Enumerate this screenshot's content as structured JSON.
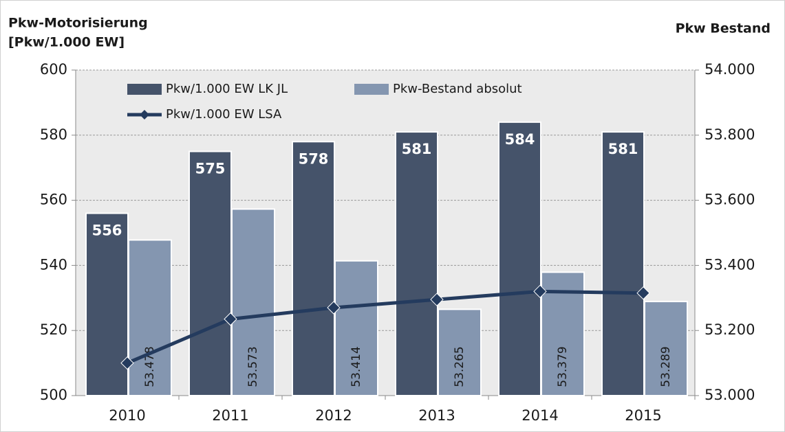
{
  "chart_data": {
    "type": "bar-line",
    "y_label": [
      "Pkw-Motorisierung",
      "[Pkw/1.000 EW]"
    ],
    "y2_label": "Pkw Bestand",
    "categories": [
      "2010",
      "2011",
      "2012",
      "2013",
      "2014",
      "2015"
    ],
    "series": [
      {
        "name": "Pkw/1.000 EW LK JL",
        "type": "bar",
        "color": "#45536a",
        "axis": "y",
        "values": [
          556,
          575,
          578,
          581,
          584,
          581
        ]
      },
      {
        "name": "Pkw-Bestand absolut",
        "type": "bar",
        "color": "#8496b0",
        "axis": "y2",
        "values": [
          53478,
          53573,
          53414,
          53265,
          53379,
          53289
        ],
        "value_labels": [
          "53.478",
          "53.573",
          "53.414",
          "53.265",
          "53.379",
          "53.289"
        ]
      },
      {
        "name": "Pkw/1.000 EW LSA",
        "type": "line",
        "color": "#243b5e",
        "axis": "y",
        "values": [
          510,
          523.5,
          527,
          529.5,
          532,
          531.5
        ]
      }
    ],
    "ylim": [
      500,
      600
    ],
    "yticks": [
      500,
      520,
      540,
      560,
      580,
      600
    ],
    "y2lim": [
      53000,
      54000
    ],
    "y2ticks": [
      {
        "value": 53000,
        "label": "53.000"
      },
      {
        "value": 53200,
        "label": "53.200"
      },
      {
        "value": 53400,
        "label": "53.400"
      },
      {
        "value": 53600,
        "label": "53.600"
      },
      {
        "value": 53800,
        "label": "53.800"
      },
      {
        "value": 54000,
        "label": "54.000"
      }
    ],
    "grid": true,
    "legend": "upper left"
  }
}
